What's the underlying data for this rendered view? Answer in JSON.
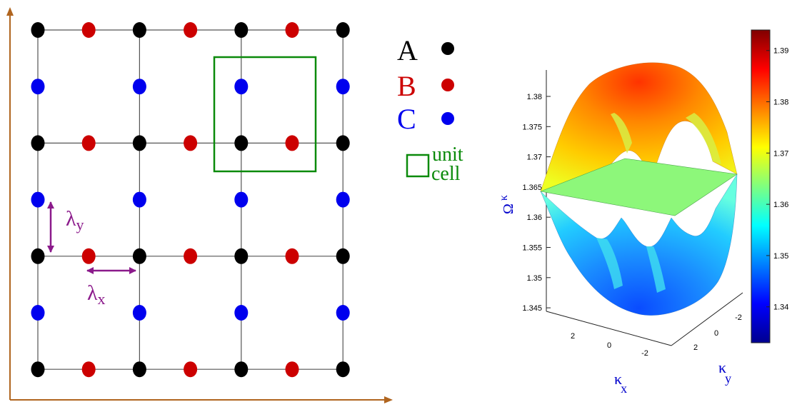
{
  "colors": {
    "lattice_line": "#555555",
    "axis_arrow": "#b0651f",
    "site_A": "#000000",
    "site_B": "#cc0000",
    "site_C": "#0000ee",
    "unit_cell": "#0a8a0a",
    "lambda_arrow": "#8b1a8b",
    "label_blue": "#0000cc"
  },
  "icons": {
    "x_axis": "arrow-right-icon",
    "y_axis": "arrow-up-icon",
    "lambda_arrows": "double-headed-arrow-icon"
  },
  "lattice": {
    "columns": 7,
    "rows": 7,
    "site_type_pattern": "A at (even col, even row); B at (odd col, even row); C at (even col, odd row)"
  },
  "legend": {
    "entries": [
      {
        "label": "A",
        "color_key": "site_A"
      },
      {
        "label": "B",
        "color_key": "site_B"
      },
      {
        "label": "C",
        "color_key": "site_C"
      }
    ],
    "unit_cell_line1": "unit",
    "unit_cell_line2": "cell"
  },
  "lambda": {
    "y_symbol": "λ",
    "y_sub": "y",
    "x_symbol": "λ",
    "x_sub": "x"
  },
  "chart_data": {
    "type": "surface",
    "zlabel": "Ω",
    "zlabel_sub": "κ",
    "xlabel": "κ",
    "xlabel_sub": "x",
    "ylabel": "κ",
    "ylabel_sub": "y",
    "z_ticks": [
      "1.38",
      "1.375",
      "1.37",
      "1.365",
      "1.36",
      "1.355",
      "1.35",
      "1.345"
    ],
    "x_ticks": [
      "2",
      "0",
      "-2"
    ],
    "y_ticks": [
      "-2",
      "0",
      "2"
    ],
    "flat_band_value": 1.365,
    "colorbar": {
      "range": [
        1.333,
        1.394
      ],
      "ticks": [
        "1.39",
        "1.38",
        "1.37",
        "1.36",
        "1.35",
        "1.34"
      ],
      "colormap": "jet"
    }
  }
}
